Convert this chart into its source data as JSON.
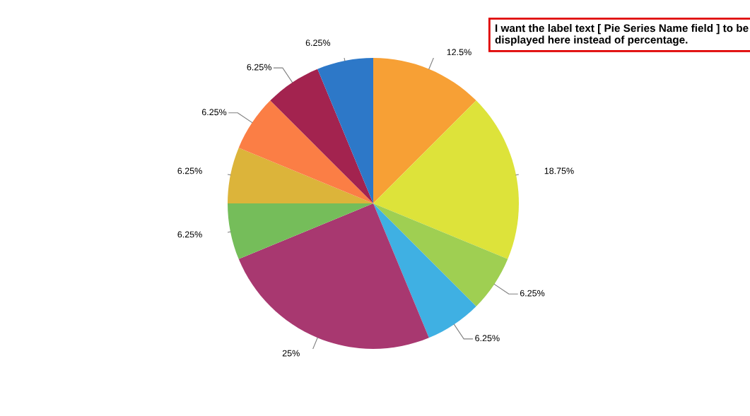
{
  "chart_data": {
    "type": "pie",
    "categories": [
      null,
      null,
      null,
      null,
      null,
      null,
      null,
      null,
      null,
      null
    ],
    "values": [
      12.5,
      18.75,
      6.25,
      6.25,
      25,
      6.25,
      6.25,
      6.25,
      6.25,
      6.25
    ],
    "value_labels": [
      "12.5%",
      "18.75%",
      "6.25%",
      "6.25%",
      "25%",
      "6.25%",
      "6.25%",
      "6.25%",
      "6.25%",
      "6.25%"
    ],
    "colors": [
      "#f7a035",
      "#dde33a",
      "#9fcf52",
      "#3fb0e3",
      "#a83870",
      "#75bd5a",
      "#dcb43a",
      "#fb7e45",
      "#a3234f",
      "#2d78c8"
    ],
    "annotations": [
      "I want the label text [ Pie Series Name field ] to be displayed here instead of percentage."
    ]
  }
}
